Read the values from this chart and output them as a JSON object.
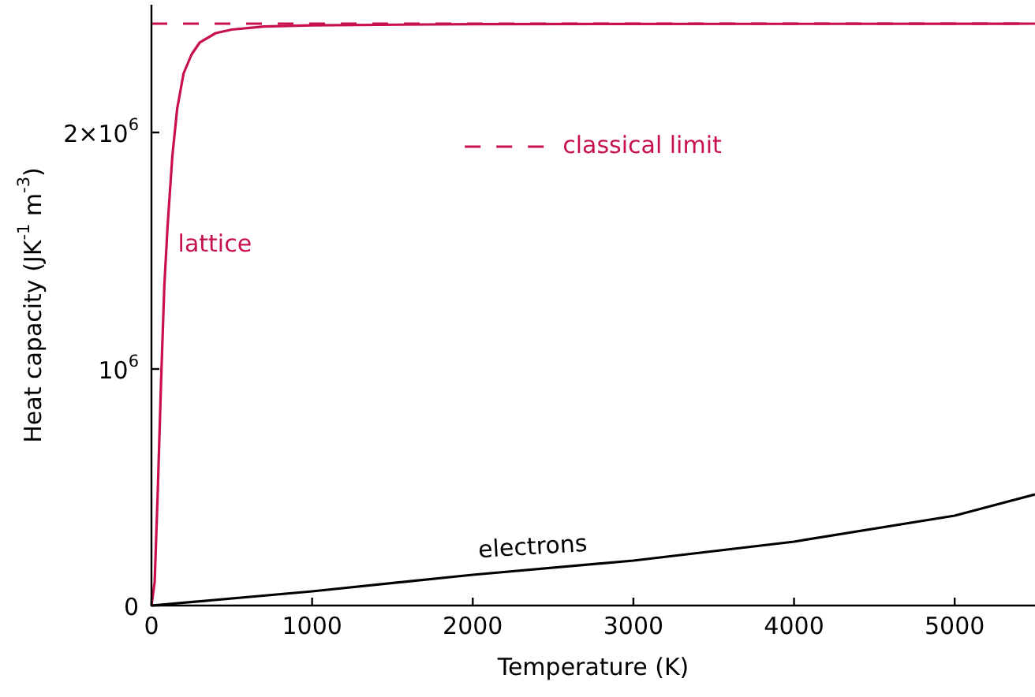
{
  "chart_data": {
    "type": "line",
    "xlabel": "Temperature (K)",
    "ylabel": "Heat capacity (JK$^{-1}$ m$^{-3}$)",
    "xlim": [
      0,
      5500
    ],
    "xticks": [
      0,
      1000,
      2000,
      3000,
      4000,
      5000
    ],
    "ylim": [
      0,
      2540000
    ],
    "yticks": [
      0,
      {
        "value": 1000000,
        "label": "10$^{6}$"
      },
      {
        "value": 2000000,
        "label": "2×10$^{6}$"
      }
    ],
    "legend": "top",
    "series": [
      {
        "name": "lattice",
        "color": "#c8104a",
        "x": [
          0,
          20,
          40,
          60,
          80,
          100,
          130,
          160,
          200,
          250,
          300,
          400,
          500,
          700,
          1000,
          2000,
          5500
        ],
        "values": [
          0,
          100000,
          500000,
          950000,
          1350000,
          1600000,
          1900000,
          2100000,
          2250000,
          2330000,
          2380000,
          2420000,
          2435000,
          2448000,
          2453000,
          2458000,
          2460000
        ]
      },
      {
        "name": "electrons",
        "color": "#000000",
        "x": [
          0,
          1000,
          2000,
          3000,
          4000,
          5000,
          5500
        ],
        "values": [
          0,
          60000,
          130000,
          190000,
          270000,
          380000,
          470000
        ]
      },
      {
        "name": "classical limit",
        "color": "#c8104a",
        "line_style": "dashed",
        "x": [
          0,
          5500
        ],
        "values": [
          2460000,
          2460000
        ]
      }
    ]
  }
}
